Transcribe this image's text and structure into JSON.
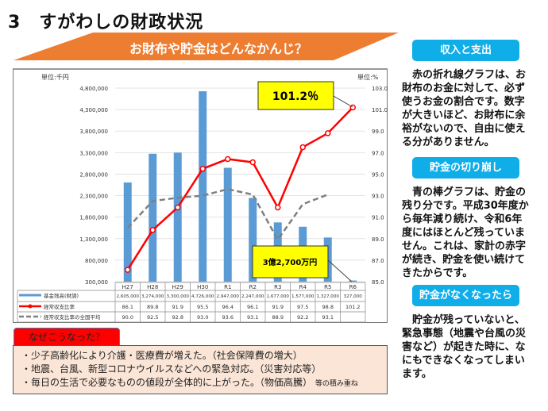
{
  "title": "3　すがわしの財政状況",
  "banner": "お財布や貯金はどんなかんじ？",
  "chart_data": {
    "type": "bar+line",
    "left_unit": "単位:千円",
    "right_unit": "単位:%",
    "categories": [
      "H27",
      "H28",
      "H29",
      "H30",
      "R1",
      "R2",
      "R3",
      "R4",
      "R5",
      "R6"
    ],
    "left_ylim": [
      300000,
      4800000
    ],
    "left_ticks": [
      "4,800,000",
      "4,300,000",
      "3,800,000",
      "3,300,000",
      "2,800,000",
      "2,300,000",
      "1,800,000",
      "1,300,000",
      "800,000",
      "300,000"
    ],
    "right_ylim": [
      85,
      103
    ],
    "right_ticks": [
      "103.0",
      "101.0",
      "99.0",
      "97.0",
      "95.0",
      "93.0",
      "91.0",
      "89.0",
      "87.0",
      "85.0"
    ],
    "grid": true,
    "series": [
      {
        "name": "基金残高(財調)",
        "type": "bar",
        "color": "#5b9bd5",
        "values": [
          2605000,
          3274000,
          3300000,
          4726000,
          2947000,
          2247000,
          1677000,
          1577000,
          1327000,
          327000
        ],
        "labels": [
          "2,605,000",
          "3,274,000",
          "3,300,000",
          "4,726,000",
          "2,947,000",
          "2,247,000",
          "1,677,000",
          "1,577,000",
          "1,327,000",
          "327,000"
        ]
      },
      {
        "name": "経常収支比率",
        "type": "line",
        "color": "#ff0000",
        "values": [
          86.1,
          89.8,
          91.9,
          95.5,
          96.4,
          96.1,
          91.9,
          97.5,
          98.8,
          101.2
        ],
        "labels": [
          "86.1",
          "89.8",
          "91.9",
          "95.5",
          "96.4",
          "96.1",
          "91.9",
          "97.5",
          "98.8",
          "101.2"
        ]
      },
      {
        "name": "経常収支比率の全国平均",
        "type": "dashed-line",
        "color": "#808080",
        "values": [
          90.0,
          92.5,
          92.8,
          93.0,
          93.6,
          93.1,
          88.9,
          92.2,
          93.1,
          null
        ],
        "labels": [
          "90.0",
          "92.5",
          "92.8",
          "93.0",
          "93.6",
          "93.1",
          "88.9",
          "92.2",
          "93.1",
          ""
        ]
      }
    ],
    "annotations": [
      "101.2％",
      "3億2,700万円"
    ]
  },
  "side": [
    {
      "heading": "収入と支出",
      "text": "　赤の折れ線グラフは、お財布のお金に対して、必ず使うお金の割合です。数字が大きいほど、お財布に余裕がないので、自由に使える分がありません。"
    },
    {
      "heading": "貯金の切り崩し",
      "text": "　青の棒グラフは、貯金の残り分です。平成30年度から毎年減り続け、令和6年度にはほとんど残っていません。これは、家計の赤字が続き、貯金を使い続けてきたからです。"
    },
    {
      "heading": "貯金がなくなったら",
      "text": "　貯金が残っていないと、緊急事態（地震や台風の災害など）が起きた時に、なにもできなくなってしまいます。"
    }
  ],
  "why": {
    "tab": "なぜこうなった？",
    "lines": [
      "・少子高齢化により介護・医療費が増えた。（社会保障費の増大）",
      "・地震、台風、新型コロナウイルスなどへの緊急対応。（災害対応等）",
      "・毎日の生活で必要なものの値段が全体的に上がった。（物価高騰）"
    ],
    "suffix": "等の積み重ね"
  }
}
